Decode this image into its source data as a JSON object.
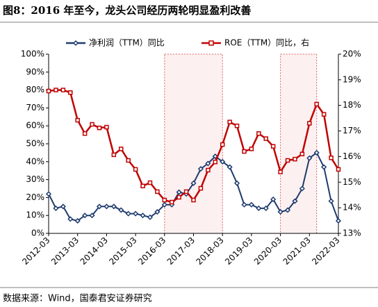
{
  "chart_data": {
    "type": "line",
    "title": "图8：2016 年至今，龙头公司经历两轮明显盈利改善",
    "source": "数据来源：Wind，国泰君安证券研究",
    "categories": [
      "2012-03",
      null,
      null,
      null,
      "2013-03",
      null,
      null,
      null,
      "2014-03",
      null,
      null,
      null,
      "2015-03",
      null,
      null,
      null,
      "2016-03",
      null,
      null,
      null,
      "2017-03",
      null,
      null,
      null,
      "2018-03",
      null,
      null,
      null,
      "2019-03",
      null,
      null,
      null,
      "2020-03",
      null,
      null,
      null,
      "2021-03",
      null,
      null,
      null,
      "2022-03"
    ],
    "series": [
      {
        "name": "净利润（TTM）同比",
        "color": "#1f3b6e",
        "values": [
          22,
          14,
          15,
          8,
          7,
          10,
          10,
          15,
          15,
          15,
          13,
          11,
          11,
          10,
          9,
          12,
          16,
          16,
          23,
          22,
          28,
          36,
          39,
          43,
          40,
          37,
          28,
          16,
          16,
          14,
          14,
          19,
          12,
          13,
          18,
          25,
          42,
          45,
          37,
          18,
          7
        ]
      },
      {
        "name": "ROE（TTM）同比，右",
        "color": "#c00000",
        "axis": "y2",
        "values": [
          18.56,
          18.6,
          18.6,
          18.5,
          17.42,
          16.9,
          17.26,
          17.12,
          17.15,
          16.07,
          16.3,
          15.85,
          15.5,
          14.85,
          14.98,
          14.63,
          14.3,
          14.22,
          14.41,
          14.63,
          14.3,
          14.76,
          15.47,
          15.79,
          16.47,
          17.35,
          17.2,
          16.2,
          16.3,
          16.9,
          16.7,
          16.4,
          15.4,
          15.85,
          15.9,
          16.1,
          17.3,
          18.05,
          17.65,
          15.95,
          15.5
        ]
      }
    ],
    "ylim": [
      0,
      100
    ],
    "yticks": [
      {
        "value": 0,
        "label": "0%"
      },
      {
        "value": 10,
        "label": "10%"
      },
      {
        "value": 20,
        "label": "20%"
      },
      {
        "value": 30,
        "label": "30%"
      },
      {
        "value": 40,
        "label": "40%"
      },
      {
        "value": 50,
        "label": "50%"
      },
      {
        "value": 60,
        "label": "60%"
      },
      {
        "value": 70,
        "label": "70%"
      },
      {
        "value": 80,
        "label": "80%"
      },
      {
        "value": 90,
        "label": "90%"
      },
      {
        "value": 100,
        "label": "100%"
      }
    ],
    "y2lim": [
      13,
      20
    ],
    "y2ticks": [
      {
        "value": 13,
        "label": "13%"
      },
      {
        "value": 14,
        "label": "14%"
      },
      {
        "value": 15,
        "label": "15%"
      },
      {
        "value": 16,
        "label": "16%"
      },
      {
        "value": 17,
        "label": "17%"
      },
      {
        "value": 18,
        "label": "18%"
      },
      {
        "value": 19,
        "label": "19%"
      },
      {
        "value": 20,
        "label": "20%"
      }
    ]
  }
}
